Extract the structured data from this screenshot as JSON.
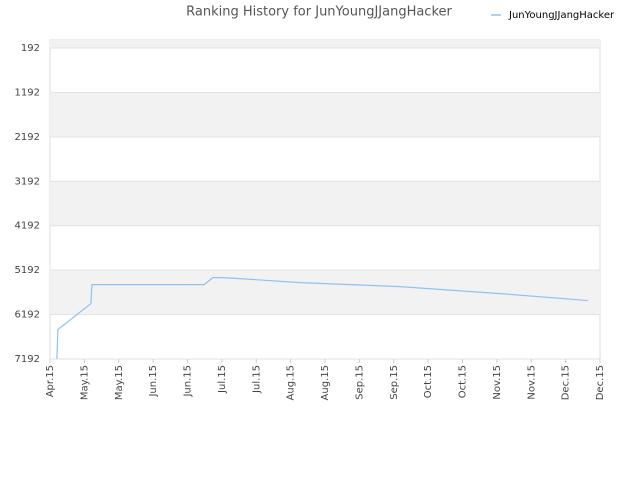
{
  "chart_data": {
    "type": "line",
    "title": "Ranking History for JunYoungJJangHacker",
    "x": [
      0.2,
      0.23,
      1.19,
      1.22,
      4.48,
      4.74,
      5.0,
      5.53,
      7.27,
      10.18,
      13.09,
      15.65
    ],
    "series": [
      {
        "name": "JunYoungJJangHacker",
        "color": "#8ec3f0",
        "values": [
          7192,
          6529,
          5945,
          5518,
          5518,
          5360,
          5360,
          5383,
          5473,
          5563,
          5720,
          5877
        ]
      }
    ],
    "xlim": [
      0,
      16
    ],
    "xticks": [
      {
        "value": 0,
        "label": "Apr.15"
      },
      {
        "value": 1,
        "label": "May.15"
      },
      {
        "value": 2,
        "label": "May.15"
      },
      {
        "value": 3,
        "label": "Jun.15"
      },
      {
        "value": 4,
        "label": "Jun.15"
      },
      {
        "value": 5,
        "label": "Jul.15"
      },
      {
        "value": 6,
        "label": "Jul.15"
      },
      {
        "value": 7,
        "label": "Aug.15"
      },
      {
        "value": 8,
        "label": "Aug.15"
      },
      {
        "value": 9,
        "label": "Sep.15"
      },
      {
        "value": 10,
        "label": "Sep.15"
      },
      {
        "value": 11,
        "label": "Oct.15"
      },
      {
        "value": 12,
        "label": "Oct.15"
      },
      {
        "value": 13,
        "label": "Nov.15"
      },
      {
        "value": 14,
        "label": "Nov.15"
      },
      {
        "value": 15,
        "label": "Dec.15"
      },
      {
        "value": 16,
        "label": "Dec.15"
      }
    ],
    "ylim": [
      7192,
      12
    ],
    "yticks": [
      192,
      1192,
      2192,
      3192,
      4192,
      5192,
      6192,
      7192
    ],
    "grid": true,
    "legend": "top-right"
  }
}
